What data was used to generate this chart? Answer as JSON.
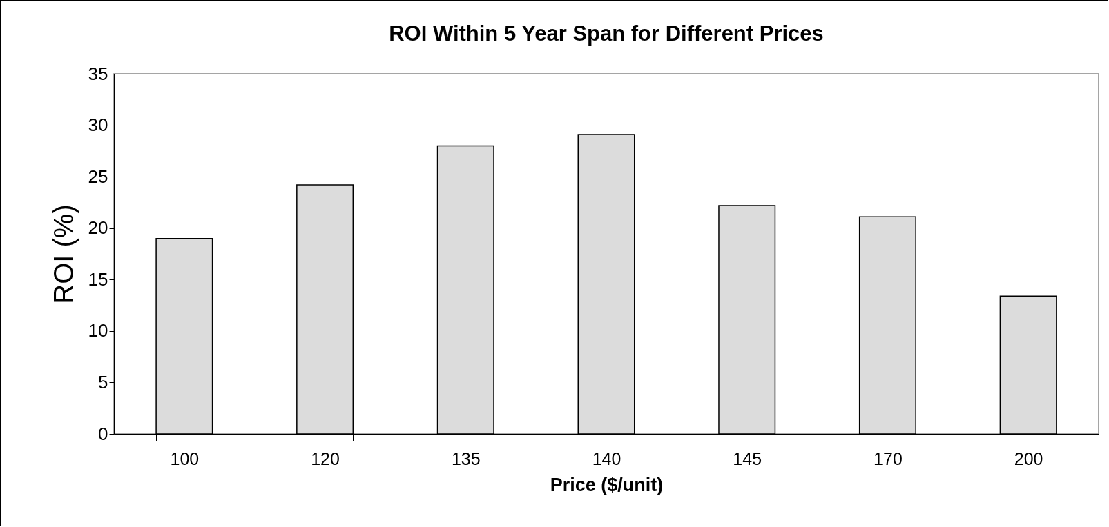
{
  "chart_data": {
    "type": "bar",
    "title": "ROI Within 5 Year Span for Different Prices",
    "xlabel": "Price ($/unit)",
    "ylabel": "ROI (%)",
    "categories": [
      "100",
      "120",
      "135",
      "140",
      "145",
      "170",
      "200"
    ],
    "series": [
      {
        "color": "#dcdcdc",
        "values": [
          19,
          24.2,
          28,
          29.1,
          22.2,
          21.1,
          13.4
        ]
      }
    ],
    "ylim": [
      0,
      35
    ],
    "yticks": [
      0,
      5,
      10,
      15,
      20,
      25,
      30,
      35
    ],
    "grid": false,
    "legend": false
  }
}
